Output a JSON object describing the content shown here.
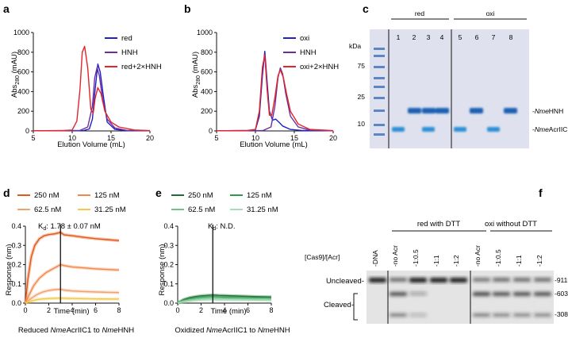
{
  "panels": {
    "a": {
      "label": "a",
      "legend": [
        "red",
        "HNH",
        "red+2×HNH"
      ],
      "ylabel_main": "Abs",
      "ylabel_sub": "280",
      "ylabel_unit": " (mAU)",
      "xlabel": "Elution Volume (mL)"
    },
    "b": {
      "label": "b",
      "legend": [
        "oxi",
        "HNH",
        "oxi+2×HNH"
      ],
      "ylabel_main": "Abs",
      "ylabel_sub": "280",
      "ylabel_unit": " (mAU)",
      "xlabel": "Elution Volume (mL)"
    },
    "c": {
      "label": "c",
      "group_labels": [
        "red",
        "oxi"
      ],
      "lanes": [
        "1",
        "2",
        "3",
        "4",
        "5",
        "6",
        "7",
        "8"
      ],
      "kda_label": "kDa",
      "markers": [
        "75",
        "25",
        "10"
      ],
      "band_prefix_italic": "Nme",
      "band_labels": [
        "HNH",
        "AcrIIC1"
      ]
    },
    "d": {
      "label": "d",
      "legend": [
        "250 nM",
        "125 nM",
        "62.5 nM",
        "31.25 nM"
      ],
      "kd_main": "K",
      "kd_sub": "d",
      "kd_value": ": 1.78 ± 0.07 nM",
      "ylabel": "Response (nm)",
      "xlabel": "Time (min)",
      "caption_pre": "Reduced ",
      "caption_it1": "Nme",
      "caption_mid": "AcrIIC1 to ",
      "caption_it2": "Nme",
      "caption_post": "HNH"
    },
    "e": {
      "label": "e",
      "legend": [
        "250 nM",
        "125 nM",
        "62.5 nM",
        "31.25 nM"
      ],
      "kd_main": "K",
      "kd_sub": "d",
      "kd_value": ": N.D.",
      "ylabel": "Response (nm)",
      "xlabel": "Time (min)",
      "caption_pre": "Oxidized ",
      "caption_it1": "Nme",
      "caption_mid": "AcrIIC1 to ",
      "caption_it2": "Nme",
      "caption_post": "HNH"
    },
    "f": {
      "label": "f",
      "group_labels": [
        "red with DTT",
        "oxi without DTT"
      ],
      "ratio_label": "[Cas9]/[Acr]",
      "lanes": [
        "-DNA",
        "-no Acr",
        "-1:0.5",
        "-1:1",
        "-1:2",
        "-no Acr",
        "-1:0.5",
        "-1:1",
        "-1:2"
      ],
      "side_labels": [
        "Uncleaved-",
        "Cleaved-"
      ],
      "size_labels": [
        "-911bp",
        "-603bp",
        "-308bp"
      ]
    }
  },
  "chart_data": [
    {
      "type": "line",
      "panel": "a",
      "xlim": [
        5,
        20
      ],
      "ylim": [
        0,
        1000
      ],
      "xticks": [
        5,
        10,
        15,
        20
      ],
      "yticks": [
        0,
        200,
        400,
        600,
        800,
        1000
      ],
      "xlabel": "Elution Volume (mL)",
      "ylabel": "Abs280 (mAU)",
      "series": [
        {
          "name": "red",
          "color": "#2121c8",
          "x": [
            5,
            10,
            11.5,
            12.2,
            12.6,
            12.9,
            13.3,
            13.6,
            14,
            14.5,
            15.5,
            17,
            20
          ],
          "y": [
            2,
            3,
            5,
            20,
            120,
            380,
            680,
            600,
            360,
            90,
            15,
            4,
            2
          ]
        },
        {
          "name": "HNH",
          "color": "#6a2f9a",
          "x": [
            5,
            10,
            11,
            12,
            12.6,
            12.9,
            13.2,
            13.5,
            13.9,
            14.5,
            15.5,
            17,
            20
          ],
          "y": [
            2,
            3,
            5,
            40,
            250,
            540,
            645,
            560,
            330,
            120,
            30,
            6,
            2
          ]
        },
        {
          "name": "red+2×HNH",
          "color": "#e3242b",
          "x": [
            5,
            9,
            10,
            10.6,
            11,
            11.3,
            11.6,
            12,
            12.4,
            12.7,
            12.95,
            13.3,
            13.7,
            14.2,
            15,
            16,
            18,
            20
          ],
          "y": [
            2,
            4,
            10,
            100,
            420,
            800,
            860,
            640,
            220,
            180,
            330,
            440,
            380,
            200,
            90,
            40,
            10,
            3
          ]
        }
      ]
    },
    {
      "type": "line",
      "panel": "b",
      "xlim": [
        5,
        20
      ],
      "ylim": [
        0,
        1000
      ],
      "xticks": [
        5,
        10,
        15,
        20
      ],
      "yticks": [
        0,
        200,
        400,
        600,
        800,
        1000
      ],
      "xlabel": "Elution Volume (mL)",
      "ylabel": "Abs280 (mAU)",
      "series": [
        {
          "name": "oxi",
          "color": "#2121c8",
          "x": [
            5,
            9,
            10,
            10.5,
            10.9,
            11.2,
            11.5,
            11.8,
            12.2,
            12.6,
            13,
            13.5,
            14.5,
            16,
            20
          ],
          "y": [
            2,
            4,
            12,
            150,
            560,
            810,
            500,
            200,
            110,
            120,
            90,
            50,
            15,
            5,
            2
          ]
        },
        {
          "name": "HNH",
          "color": "#6a2f9a",
          "x": [
            5,
            10,
            11,
            12,
            12.5,
            12.9,
            13.2,
            13.5,
            13.9,
            14.5,
            15.5,
            17,
            20
          ],
          "y": [
            2,
            3,
            5,
            40,
            250,
            540,
            640,
            580,
            380,
            150,
            40,
            8,
            2
          ]
        },
        {
          "name": "oxi+2×HNH",
          "color": "#e3242b",
          "x": [
            5,
            9,
            10,
            10.5,
            10.9,
            11.2,
            11.5,
            11.8,
            12.1,
            12.5,
            12.9,
            13.2,
            13.6,
            14,
            14.5,
            15.5,
            17,
            20
          ],
          "y": [
            2,
            4,
            15,
            200,
            650,
            770,
            420,
            160,
            160,
            340,
            560,
            620,
            540,
            380,
            200,
            70,
            15,
            3
          ]
        }
      ]
    },
    {
      "type": "line",
      "panel": "d",
      "xlim": [
        0,
        8
      ],
      "ylim": [
        0,
        0.4
      ],
      "xticks": [
        0,
        2,
        4,
        6,
        8
      ],
      "yticks": [
        0,
        0.1,
        0.2,
        0.3,
        0.4
      ],
      "xlabel": "Time (min)",
      "ylabel": "Response (nm)",
      "vline_x": 3,
      "series": [
        {
          "name": "250 nM",
          "color": "#e05a1a",
          "x": [
            0,
            0.2,
            0.5,
            0.8,
            1.2,
            1.6,
            2,
            2.5,
            3,
            3.3,
            4,
            5,
            6,
            7,
            8
          ],
          "y": [
            0,
            0.12,
            0.24,
            0.3,
            0.335,
            0.35,
            0.356,
            0.36,
            0.368,
            0.355,
            0.35,
            0.342,
            0.335,
            0.33,
            0.325
          ]
        },
        {
          "name": "125 nM",
          "color": "#f08a4b",
          "x": [
            0,
            0.3,
            0.7,
            1.2,
            1.8,
            2.4,
            3,
            3.3,
            4,
            5,
            6,
            7,
            8
          ],
          "y": [
            0,
            0.04,
            0.09,
            0.13,
            0.16,
            0.18,
            0.2,
            0.195,
            0.188,
            0.183,
            0.178,
            0.175,
            0.172
          ]
        },
        {
          "name": "62.5 nM",
          "color": "#f4a06a",
          "x": [
            0,
            0.5,
            1,
            1.5,
            2,
            2.5,
            3,
            3.3,
            4,
            5,
            6,
            7,
            8
          ],
          "y": [
            0,
            0.025,
            0.045,
            0.058,
            0.066,
            0.07,
            0.072,
            0.068,
            0.063,
            0.06,
            0.058,
            0.056,
            0.055
          ]
        },
        {
          "name": "31.25 nM",
          "color": "#f3c84a",
          "x": [
            0,
            0.5,
            1,
            1.5,
            2,
            3,
            3.3,
            4,
            5,
            6,
            8
          ],
          "y": [
            0,
            0.01,
            0.018,
            0.022,
            0.024,
            0.026,
            0.025,
            0.024,
            0.023,
            0.022,
            0.021
          ]
        }
      ]
    },
    {
      "type": "line",
      "panel": "e",
      "xlim": [
        0,
        8
      ],
      "ylim": [
        0,
        0.4
      ],
      "xticks": [
        0,
        2,
        4,
        6,
        8
      ],
      "yticks": [
        0,
        0.1,
        0.2,
        0.3,
        0.4
      ],
      "xlabel": "Time (min)",
      "ylabel": "Response (nm)",
      "vline_x": 3,
      "series": [
        {
          "name": "250 nM",
          "color": "#1f6b35",
          "x": [
            0,
            0.5,
            1,
            1.5,
            2,
            3,
            3.5,
            4,
            5,
            6,
            7,
            8
          ],
          "y": [
            0,
            0.018,
            0.028,
            0.034,
            0.038,
            0.042,
            0.04,
            0.039,
            0.037,
            0.035,
            0.033,
            0.032
          ]
        },
        {
          "name": "125 nM",
          "color": "#2e9a4e",
          "x": [
            0,
            0.5,
            1,
            1.5,
            2,
            3,
            3.5,
            4,
            5,
            6,
            7,
            8
          ],
          "y": [
            0,
            0.014,
            0.022,
            0.027,
            0.031,
            0.034,
            0.032,
            0.031,
            0.03,
            0.029,
            0.028,
            0.027
          ]
        },
        {
          "name": "62.5 nM",
          "color": "#6cc08a",
          "x": [
            0,
            0.5,
            1,
            1.5,
            2,
            3,
            3.5,
            4,
            5,
            6,
            7,
            8
          ],
          "y": [
            0,
            0.01,
            0.016,
            0.02,
            0.023,
            0.026,
            0.025,
            0.024,
            0.023,
            0.022,
            0.021,
            0.02
          ]
        },
        {
          "name": "31.25 nM",
          "color": "#a9dbb8",
          "x": [
            0,
            0.5,
            1,
            1.5,
            2,
            3,
            3.5,
            4,
            5,
            6,
            7,
            8
          ],
          "y": [
            0,
            0.007,
            0.011,
            0.014,
            0.016,
            0.018,
            0.017,
            0.017,
            0.016,
            0.016,
            0.015,
            0.015
          ]
        }
      ]
    }
  ]
}
